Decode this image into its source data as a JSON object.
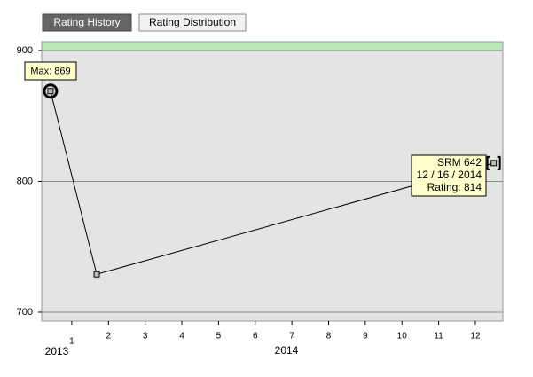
{
  "tabs": [
    "Rating History",
    "Rating Distribution"
  ],
  "chart_data": {
    "type": "line",
    "x": [
      0.42,
      1.68,
      12.5
    ],
    "values": [
      869,
      729,
      814
    ],
    "color": "#000000",
    "xlim": [
      0.18,
      12.75
    ],
    "xticks": [
      1,
      2,
      3,
      4,
      5,
      6,
      7,
      8,
      9,
      10,
      11,
      12
    ],
    "year_labels": [
      "2013",
      "2014"
    ],
    "ylim": [
      693.2,
      906.8
    ],
    "yticks": [
      700,
      800,
      900
    ],
    "grid": true,
    "band_above": 900,
    "band_color": "#b9e8b9",
    "max_label": "Max: 869",
    "tooltip": [
      "SRM 642",
      "12 / 16 / 2014",
      "Rating: 814"
    ]
  }
}
